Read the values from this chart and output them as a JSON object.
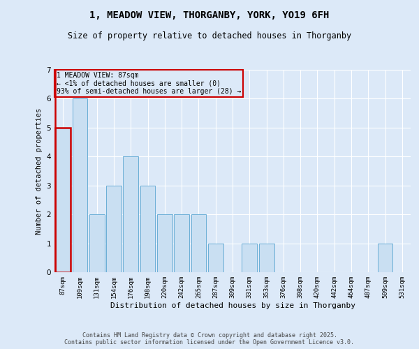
{
  "title": "1, MEADOW VIEW, THORGANBY, YORK, YO19 6FH",
  "subtitle": "Size of property relative to detached houses in Thorganby",
  "xlabel": "Distribution of detached houses by size in Thorganby",
  "ylabel": "Number of detached properties",
  "categories": [
    "87sqm",
    "109sqm",
    "131sqm",
    "154sqm",
    "176sqm",
    "198sqm",
    "220sqm",
    "242sqm",
    "265sqm",
    "287sqm",
    "309sqm",
    "331sqm",
    "353sqm",
    "376sqm",
    "398sqm",
    "420sqm",
    "442sqm",
    "464sqm",
    "487sqm",
    "509sqm",
    "531sqm"
  ],
  "values": [
    5,
    6,
    2,
    3,
    4,
    3,
    2,
    2,
    2,
    1,
    0,
    1,
    1,
    0,
    0,
    0,
    0,
    0,
    0,
    1,
    0
  ],
  "subject_index": 0,
  "annotation_line1": "1 MEADOW VIEW: 87sqm",
  "annotation_line2": "← <1% of detached houses are smaller (0)",
  "annotation_line3": "93% of semi-detached houses are larger (28) →",
  "bar_color": "#c9dff2",
  "bar_edge_color": "#6aaed6",
  "subject_bar_edge_color": "#cc0000",
  "annotation_box_edge": "#cc0000",
  "background_color": "#dce9f8",
  "footer_line1": "Contains HM Land Registry data © Crown copyright and database right 2025.",
  "footer_line2": "Contains public sector information licensed under the Open Government Licence v3.0.",
  "ylim": [
    0,
    7
  ],
  "yticks": [
    0,
    1,
    2,
    3,
    4,
    5,
    6,
    7
  ]
}
